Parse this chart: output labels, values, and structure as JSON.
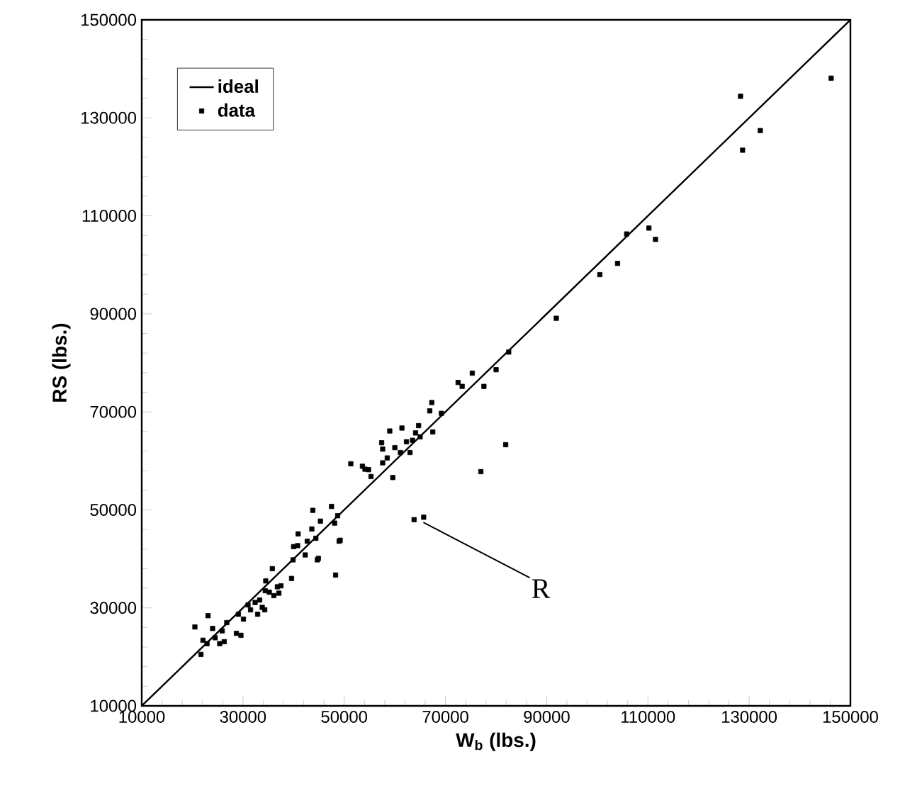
{
  "chart_data": {
    "type": "scatter",
    "xlabel": "W$_{b}$ (lbs.)",
    "ylabel": "RS (lbs.)",
    "xlim": [
      10000,
      150000
    ],
    "ylim": [
      10000,
      150000
    ],
    "xticks": [
      10000,
      30000,
      50000,
      70000,
      90000,
      110000,
      130000,
      150000
    ],
    "yticks": [
      10000,
      30000,
      50000,
      70000,
      90000,
      110000,
      130000,
      150000
    ],
    "legend": "top left",
    "grid": false,
    "marker": "square",
    "annotations": [
      {
        "text": "R",
        "x": 64800,
        "y": 48300
      }
    ],
    "series": [
      {
        "name": "ideal",
        "type": "line",
        "color": "#000000",
        "line_style": "solid",
        "marker": "none",
        "x": [
          10000,
          150000
        ],
        "values": [
          10000,
          150000
        ]
      },
      {
        "name": "data",
        "color": "#000000",
        "x": [
          146200,
          128300,
          132200,
          128700,
          110200,
          111500,
          105800,
          104000,
          100500,
          91900,
          81900,
          77000,
          65700,
          63800,
          75300,
          72500,
          73300,
          77600,
          80000,
          82500,
          67300,
          66900,
          69200,
          59000,
          61400,
          64700,
          64100,
          57400,
          57600,
          60000,
          61100,
          62300,
          63500,
          63000,
          67500,
          65000,
          57600,
          58500,
          59600,
          55300,
          54800,
          51300,
          53600,
          54100,
          47500,
          43800,
          48700,
          45300,
          48100,
          49200,
          48300,
          44900,
          42300,
          40000,
          40900,
          43600,
          44400,
          35800,
          39600,
          36800,
          34500,
          23100,
          20500,
          24000,
          22100,
          24500,
          25900,
          21700,
          22900,
          25400,
          26300,
          26800,
          29100,
          30100,
          28700,
          29600,
          31500,
          32400,
          31000,
          33300,
          34400,
          33800,
          32900,
          35200,
          36100,
          37100,
          39900,
          37500,
          34300,
          44700,
          49000,
          40800,
          42700
        ],
        "values": [
          138100,
          134400,
          127400,
          123400,
          107500,
          105200,
          106300,
          100300,
          98000,
          89100,
          63300,
          57800,
          48500,
          48000,
          77900,
          76000,
          75200,
          75200,
          78600,
          82200,
          71900,
          70200,
          69700,
          66100,
          66700,
          67200,
          65700,
          63700,
          62400,
          62700,
          61700,
          63900,
          64200,
          61700,
          65900,
          64900,
          59600,
          60600,
          56600,
          56800,
          58200,
          59400,
          58900,
          58300,
          50700,
          49900,
          48800,
          47700,
          47300,
          43800,
          36700,
          40100,
          40800,
          42500,
          45100,
          46100,
          44200,
          38000,
          36000,
          34300,
          35500,
          28400,
          26100,
          25800,
          23400,
          23900,
          25300,
          20500,
          22700,
          22700,
          23100,
          27000,
          28700,
          27700,
          24800,
          24400,
          29600,
          31100,
          30600,
          31600,
          33500,
          30100,
          28700,
          33200,
          32500,
          33000,
          39800,
          34500,
          29600,
          39800,
          43600,
          42700,
          43600
        ]
      }
    ]
  }
}
